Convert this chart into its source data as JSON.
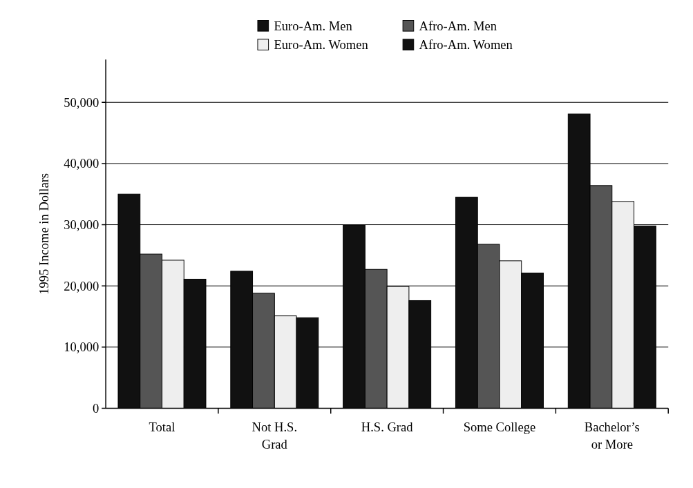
{
  "chart_data": {
    "type": "bar",
    "ylabel": "1995 Income in Dollars",
    "categories": [
      "Total",
      "Not H.S. Grad",
      "H.S. Grad",
      "Some College",
      "Bachelor’s or More"
    ],
    "series": [
      {
        "name": "Euro-Am. Men",
        "color": "#111111",
        "values": [
          35000,
          22400,
          29900,
          34500,
          48100
        ]
      },
      {
        "name": "Afro-Am. Men",
        "color": "#555555",
        "values": [
          25200,
          18800,
          22700,
          26800,
          36400
        ]
      },
      {
        "name": "Euro-Am. Women",
        "color": "#eeeeee",
        "values": [
          24200,
          15100,
          19900,
          24100,
          33800
        ]
      },
      {
        "name": "Afro-Am. Women",
        "color": "#111111",
        "values": [
          21100,
          14800,
          17600,
          22100,
          29800
        ]
      }
    ],
    "ylim": [
      0,
      57000
    ],
    "yticks": [
      0,
      {
        "value": 10000,
        "label": "10,000"
      },
      {
        "value": 20000,
        "label": "20,000"
      },
      {
        "value": 30000,
        "label": "30,000"
      },
      {
        "value": 40000,
        "label": "40,000"
      },
      {
        "value": 50000,
        "label": "50,000"
      }
    ],
    "grid": "y",
    "legend": "top"
  }
}
